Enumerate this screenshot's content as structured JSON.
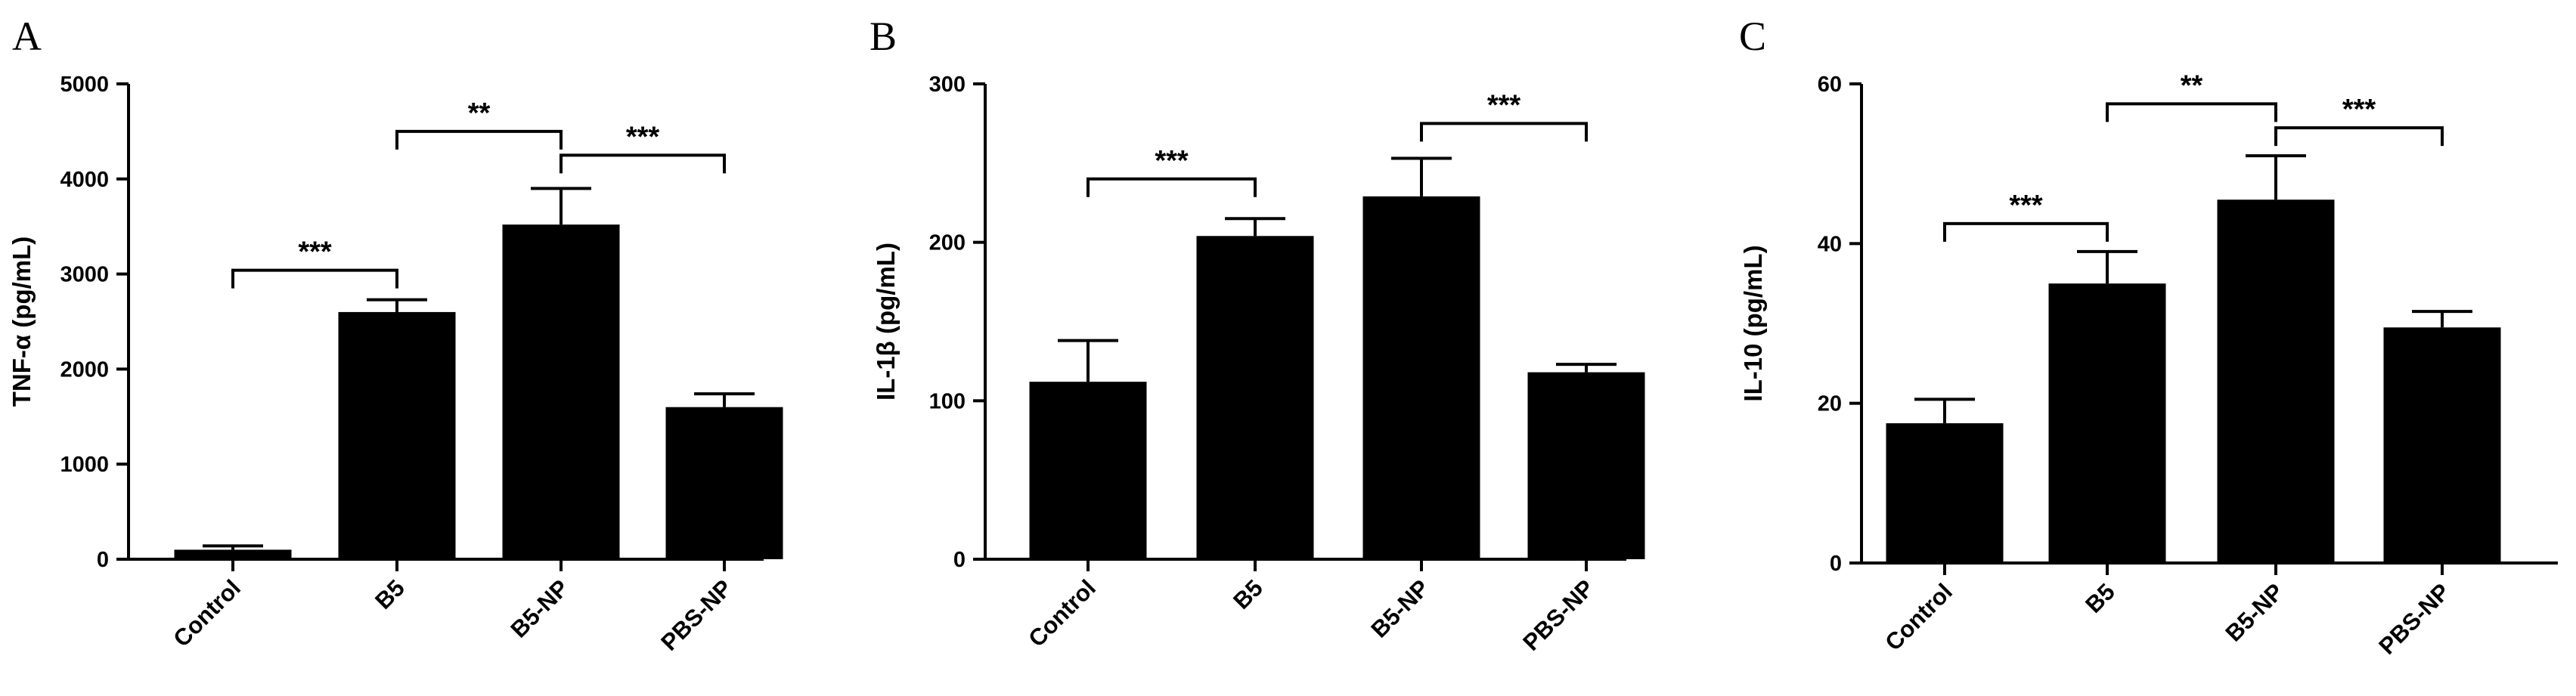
{
  "chart_data": [
    {
      "type": "bar",
      "panel": "A",
      "categories": [
        "Control",
        "B5",
        "B5-NP",
        "PBS-NP"
      ],
      "values": [
        100,
        2600,
        3520,
        1600
      ],
      "errors": [
        40,
        130,
        380,
        140
      ],
      "ylabel": "TNF-α (pg/mL)",
      "ylim": [
        0,
        5000
      ],
      "yticks": [
        0,
        1000,
        2000,
        3000,
        4000,
        5000
      ],
      "significance": [
        {
          "from": 0,
          "to": 1,
          "label": "***",
          "y": 3040
        },
        {
          "from": 1,
          "to": 2,
          "label": "**",
          "y": 4500
        },
        {
          "from": 2,
          "to": 3,
          "label": "***",
          "y": 4250
        }
      ]
    },
    {
      "type": "bar",
      "panel": "B",
      "categories": [
        "Control",
        "B5",
        "B5-NP",
        "PBS-NP"
      ],
      "values": [
        112,
        204,
        229,
        118
      ],
      "errors": [
        26,
        11,
        24,
        5
      ],
      "ylabel": "IL-1β (pg/mL)",
      "ylim": [
        0,
        300
      ],
      "yticks": [
        0,
        100,
        200,
        300
      ],
      "significance": [
        {
          "from": 0,
          "to": 1,
          "label": "***",
          "y": 240
        },
        {
          "from": 2,
          "to": 3,
          "label": "***",
          "y": 275
        }
      ]
    },
    {
      "type": "bar",
      "panel": "C",
      "categories": [
        "Control",
        "B5",
        "B5-NP",
        "PBS-NP"
      ],
      "values": [
        17.5,
        35,
        45.5,
        29.5
      ],
      "errors": [
        3,
        4,
        5.5,
        2
      ],
      "ylabel": "IL-10 (pg/mL)",
      "ylim": [
        0,
        60
      ],
      "yticks": [
        0,
        20,
        40,
        60
      ],
      "significance": [
        {
          "from": 0,
          "to": 1,
          "label": "***",
          "y": 42.5
        },
        {
          "from": 1,
          "to": 2,
          "label": "**",
          "y": 57.5
        },
        {
          "from": 2,
          "to": 3,
          "label": "***",
          "y": 54.5
        }
      ]
    }
  ]
}
